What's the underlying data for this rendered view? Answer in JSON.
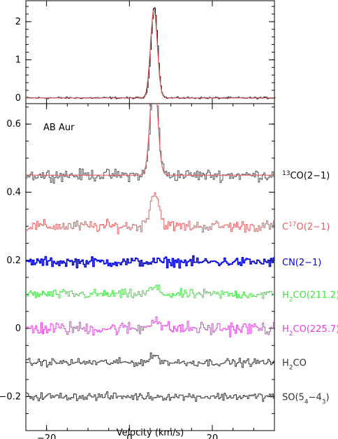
{
  "chart_data": [
    {
      "type": "line",
      "panel": "top",
      "title": "",
      "xlabel": "",
      "ylabel": "",
      "xlim": [
        -25,
        35
      ],
      "ylim": [
        -0.15,
        2.55
      ],
      "yticks": [
        0,
        1,
        2
      ],
      "ytick_labels": [
        "0",
        "1",
        "2"
      ],
      "grid": false,
      "series": [
        {
          "color": "#000000",
          "style": "histogram",
          "peak_x": 5.9,
          "peak_y": 2.38,
          "baseline": 0.0
        },
        {
          "color": "#e06060",
          "style": "line",
          "peak_x": 5.9,
          "peak_y": 2.33,
          "baseline": 0.0
        }
      ]
    },
    {
      "type": "line",
      "panel": "bottom",
      "title": "",
      "annotation": "AB Aur",
      "xlabel": "Velocity (km/s)",
      "ylabel": "",
      "xlim": [
        -25,
        35
      ],
      "ylim": [
        -0.3,
        0.66
      ],
      "xticks": [
        -20,
        0,
        20
      ],
      "xtick_labels": [
        "−20",
        "0",
        "20"
      ],
      "yticks": [
        -0.2,
        0,
        0.2,
        0.4,
        0.6
      ],
      "ytick_labels": [
        "−0.2",
        "0",
        "0.2",
        "0.4",
        "0.6"
      ],
      "grid": false,
      "series": [
        {
          "label_pre": "13",
          "label_base": "CO(2−1)",
          "label_sub": "",
          "label_post": "",
          "color": "#555555",
          "offset": 0.45,
          "noise": 0.012,
          "peak": 0.3,
          "step": "histogram"
        },
        {
          "label_pre": "",
          "label_base": "C",
          "label_sup": "17",
          "label_post": "O(2−1)",
          "color": "#e06060",
          "offset": 0.3,
          "noise": 0.012,
          "peak": 0.1,
          "step": "histogram"
        },
        {
          "label_pre": "",
          "label_base": "CN(2−1)",
          "label_post": "",
          "color": "#0000e0",
          "offset": 0.195,
          "noise": 0.01,
          "peak": 0.0,
          "step": "histogram"
        },
        {
          "label_pre": "",
          "label_base": "H",
          "label_sub": "2",
          "label_post": "CO(211.2)",
          "color": "#40e040",
          "offset": 0.1,
          "noise": 0.01,
          "peak": 0.02,
          "step": "histogram"
        },
        {
          "label_pre": "",
          "label_base": "H",
          "label_sub": "2",
          "label_post": "CO(225.7)",
          "color": "#e040e0",
          "offset": 0.0,
          "noise": 0.014,
          "peak": 0.03,
          "step": "histogram"
        },
        {
          "label_pre": "",
          "label_base": "H",
          "label_sub": "2",
          "label_post": "CO",
          "color": "#333333",
          "offset": -0.1,
          "noise": 0.008,
          "peak": 0.02,
          "step": "histogram"
        },
        {
          "label_pre": "",
          "label_base": "SO(5",
          "label_sub": "4",
          "label_post": "−4",
          "label_sub2": "3",
          "label_tail": ")",
          "color": "#333333",
          "offset": -0.2,
          "noise": 0.008,
          "peak": 0.0,
          "step": "histogram"
        }
      ]
    }
  ]
}
